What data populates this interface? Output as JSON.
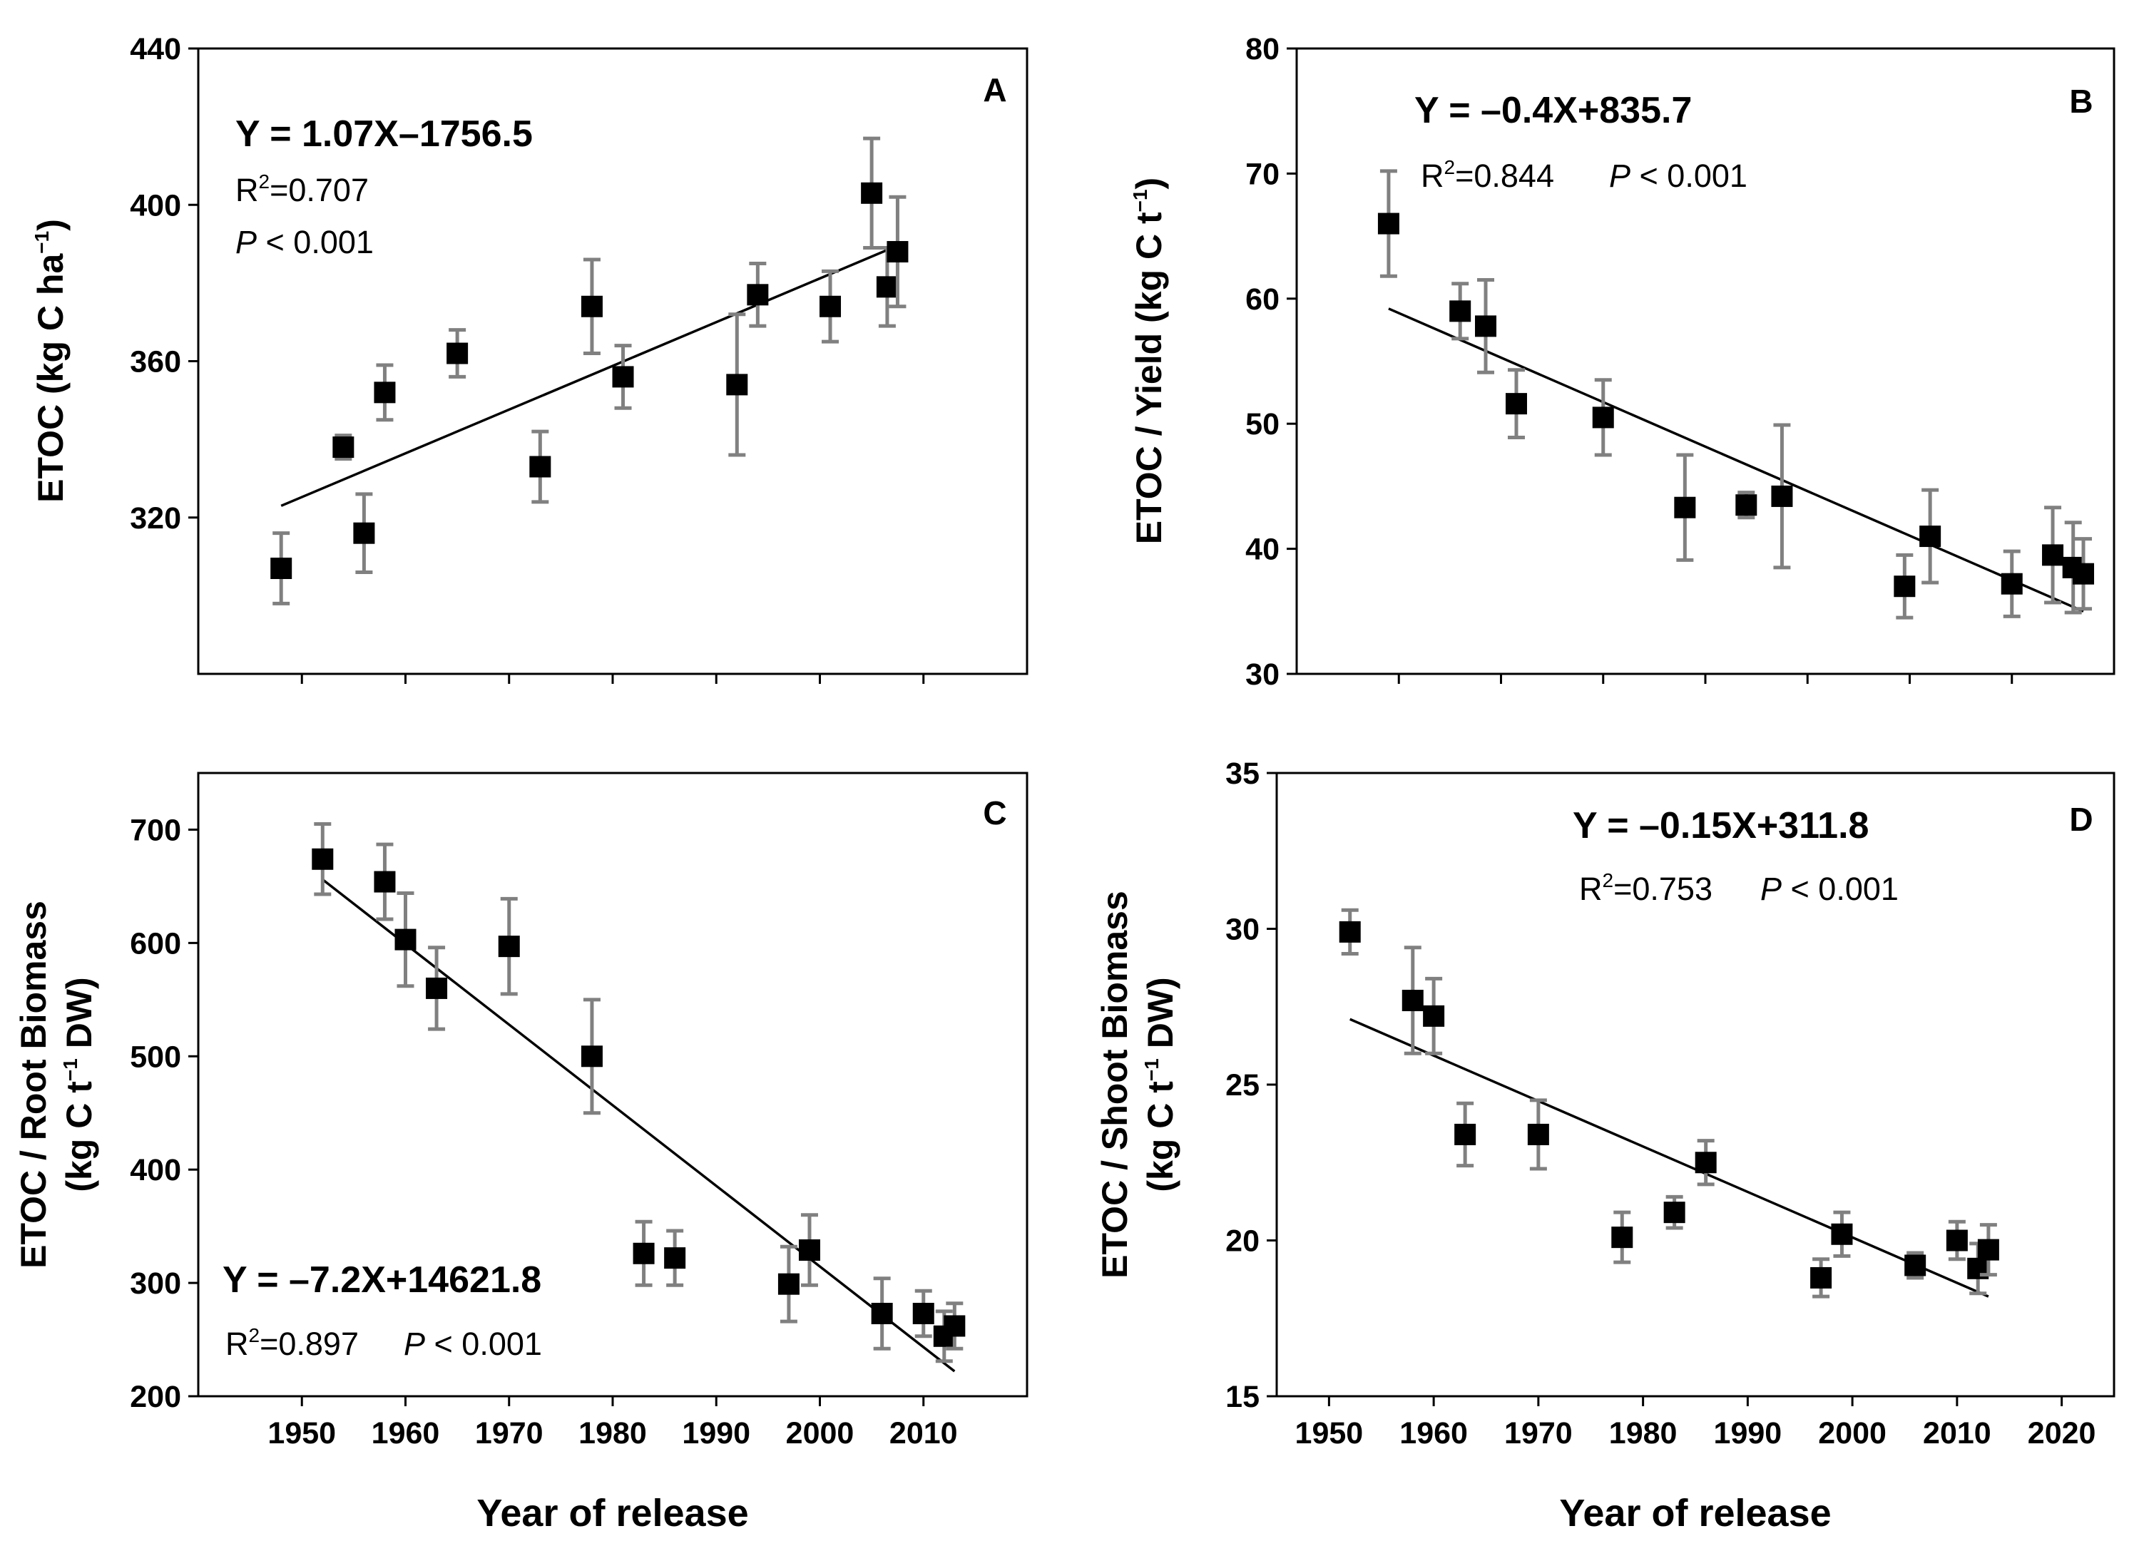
{
  "x_axis_label": "Year of release",
  "colors": {
    "marker": "#000000",
    "error_bar": "#808080",
    "line": "#000000"
  },
  "chart_data": [
    {
      "panel": "A",
      "type": "scatter",
      "ylabel_main": "ETOC (kg C ha",
      "ylabel_sup": "−1",
      "ylabel_tail": ")",
      "xlim": [
        1940,
        2020
      ],
      "ylim": [
        280,
        440
      ],
      "yticks": [
        "320",
        "360",
        "400",
        "440"
      ],
      "xticks": [],
      "equation": "Y = 1.07X–1756.5",
      "r2_prefix": "R",
      "r2_sup": "2",
      "r2_value": "=0.707",
      "p_label": "P",
      "p_value": " < 0.001",
      "points": [
        {
          "x": 1948,
          "y": 307,
          "err": 9
        },
        {
          "x": 1954,
          "y": 338,
          "err": 3
        },
        {
          "x": 1956,
          "y": 316,
          "err": 10
        },
        {
          "x": 1958,
          "y": 352,
          "err": 7
        },
        {
          "x": 1965,
          "y": 362,
          "err": 6
        },
        {
          "x": 1973,
          "y": 333,
          "err": 9
        },
        {
          "x": 1978,
          "y": 374,
          "err": 12
        },
        {
          "x": 1981,
          "y": 356,
          "err": 8
        },
        {
          "x": 1992,
          "y": 354,
          "err": 18
        },
        {
          "x": 1994,
          "y": 377,
          "err": 8
        },
        {
          "x": 2001,
          "y": 374,
          "err": 9
        },
        {
          "x": 2005,
          "y": 403,
          "err": 14
        },
        {
          "x": 2006.5,
          "y": 379,
          "err": 10
        },
        {
          "x": 2007.5,
          "y": 388,
          "err": 14
        }
      ],
      "fit": {
        "x1": 1948,
        "y1": 323,
        "x2": 2007,
        "y2": 389
      }
    },
    {
      "panel": "B",
      "type": "scatter",
      "ylabel_main": "ETOC / Yield (kg C t",
      "ylabel_sup": "−1",
      "ylabel_tail": ")",
      "xlim": [
        1940,
        2020
      ],
      "ylim": [
        30,
        80
      ],
      "yticks": [
        "30",
        "40",
        "50",
        "60",
        "70",
        "80"
      ],
      "xticks": [],
      "equation": "Y = –0.4X+835.7",
      "r2_prefix": "R",
      "r2_sup": "2",
      "r2_value": "=0.844",
      "p_label": "P",
      "p_value": " < 0.001",
      "points": [
        {
          "x": 1949,
          "y": 66,
          "err": 4.2
        },
        {
          "x": 1956,
          "y": 59,
          "err": 2.2
        },
        {
          "x": 1958.5,
          "y": 57.8,
          "err": 3.7
        },
        {
          "x": 1961.5,
          "y": 51.6,
          "err": 2.7
        },
        {
          "x": 1970,
          "y": 50.5,
          "err": 3
        },
        {
          "x": 1978,
          "y": 43.3,
          "err": 4.2
        },
        {
          "x": 1984,
          "y": 43.5,
          "err": 1
        },
        {
          "x": 1987.5,
          "y": 44.2,
          "err": 5.7
        },
        {
          "x": 1999.5,
          "y": 37,
          "err": 2.5
        },
        {
          "x": 2002,
          "y": 41,
          "err": 3.7
        },
        {
          "x": 2010,
          "y": 37.2,
          "err": 2.6
        },
        {
          "x": 2014,
          "y": 39.5,
          "err": 3.8
        },
        {
          "x": 2016,
          "y": 38.5,
          "err": 3.6
        },
        {
          "x": 2017,
          "y": 38,
          "err": 2.8
        }
      ],
      "fit": {
        "x1": 1949,
        "y1": 59.2,
        "x2": 2017,
        "y2": 35
      }
    },
    {
      "panel": "C",
      "type": "scatter",
      "ylabel_main": "ETOC / Root Biomass",
      "ylabel2_main": "(kg C t",
      "ylabel2_sup": "−1",
      "ylabel2_tail": " DW)",
      "xlim": [
        1940,
        2020
      ],
      "ylim": [
        200,
        750
      ],
      "yticks": [
        "200",
        "300",
        "400",
        "500",
        "600",
        "700"
      ],
      "xticks": [
        "1950",
        "1960",
        "1970",
        "1980",
        "1990",
        "2000",
        "2010"
      ],
      "equation": "Y = –7.2X+14621.8",
      "r2_prefix": "R",
      "r2_sup": "2",
      "r2_value": "=0.897",
      "p_label": "P",
      "p_value": " < 0.001",
      "points": [
        {
          "x": 1952,
          "y": 674,
          "err": 31
        },
        {
          "x": 1958,
          "y": 654,
          "err": 33
        },
        {
          "x": 1960,
          "y": 603,
          "err": 41
        },
        {
          "x": 1963,
          "y": 560,
          "err": 36
        },
        {
          "x": 1970,
          "y": 597,
          "err": 42
        },
        {
          "x": 1978,
          "y": 500,
          "err": 50
        },
        {
          "x": 1983,
          "y": 326,
          "err": 28
        },
        {
          "x": 1986,
          "y": 322,
          "err": 24
        },
        {
          "x": 1997,
          "y": 299,
          "err": 33
        },
        {
          "x": 1999,
          "y": 329,
          "err": 31
        },
        {
          "x": 2006,
          "y": 273,
          "err": 31
        },
        {
          "x": 2010,
          "y": 273,
          "err": 20
        },
        {
          "x": 2012,
          "y": 253,
          "err": 22
        },
        {
          "x": 2013,
          "y": 262,
          "err": 20
        }
      ],
      "fit": {
        "x1": 1952,
        "y1": 656,
        "x2": 2013,
        "y2": 222
      }
    },
    {
      "panel": "D",
      "type": "scatter",
      "ylabel_main": "ETOC / Shoot Biomass",
      "ylabel2_main": "(kg C t",
      "ylabel2_sup": "−1",
      "ylabel2_tail": " DW)",
      "xlim": [
        1945,
        2025
      ],
      "ylim": [
        15,
        35
      ],
      "yticks": [
        "15",
        "20",
        "25",
        "30",
        "35"
      ],
      "xticks": [
        "1950",
        "1960",
        "1970",
        "1980",
        "1990",
        "2000",
        "2010",
        "2020"
      ],
      "equation": "Y = –0.15X+311.8",
      "r2_prefix": "R",
      "r2_sup": "2",
      "r2_value": "=0.753",
      "p_label": "P",
      "p_value": " < 0.001",
      "points": [
        {
          "x": 1952,
          "y": 29.9,
          "err": 0.7
        },
        {
          "x": 1958,
          "y": 27.7,
          "err": 1.7
        },
        {
          "x": 1960,
          "y": 27.2,
          "err": 1.2
        },
        {
          "x": 1963,
          "y": 23.4,
          "err": 1
        },
        {
          "x": 1970,
          "y": 23.4,
          "err": 1.1
        },
        {
          "x": 1978,
          "y": 20.1,
          "err": 0.8
        },
        {
          "x": 1983,
          "y": 20.9,
          "err": 0.5
        },
        {
          "x": 1986,
          "y": 22.5,
          "err": 0.7
        },
        {
          "x": 1997,
          "y": 18.8,
          "err": 0.6
        },
        {
          "x": 1999,
          "y": 20.2,
          "err": 0.7
        },
        {
          "x": 2006,
          "y": 19.2,
          "err": 0.4
        },
        {
          "x": 2010,
          "y": 20,
          "err": 0.6
        },
        {
          "x": 2012,
          "y": 19.1,
          "err": 0.8
        },
        {
          "x": 2013,
          "y": 19.7,
          "err": 0.8
        }
      ],
      "fit": {
        "x1": 1952,
        "y1": 27.1,
        "x2": 2013,
        "y2": 18.2
      }
    }
  ]
}
